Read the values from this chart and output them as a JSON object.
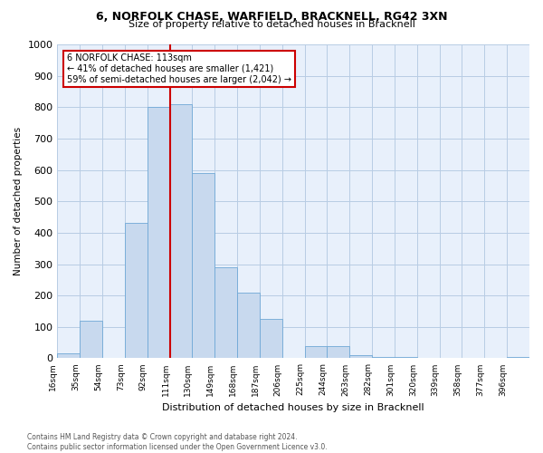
{
  "title": "6, NORFOLK CHASE, WARFIELD, BRACKNELL, RG42 3XN",
  "subtitle": "Size of property relative to detached houses in Bracknell",
  "xlabel": "Distribution of detached houses by size in Bracknell",
  "ylabel": "Number of detached properties",
  "bar_color": "#c8d9ee",
  "bar_edge_color": "#6fa8d6",
  "grid_color": "#b8cce4",
  "background_color": "#e8f0fb",
  "tick_labels": [
    "16sqm",
    "35sqm",
    "54sqm",
    "73sqm",
    "92sqm",
    "111sqm",
    "130sqm",
    "149sqm",
    "168sqm",
    "187sqm",
    "206sqm",
    "225sqm",
    "244sqm",
    "263sqm",
    "282sqm",
    "301sqm",
    "320sqm",
    "339sqm",
    "358sqm",
    "377sqm",
    "396sqm"
  ],
  "bar_heights": [
    15,
    120,
    0,
    430,
    800,
    810,
    590,
    290,
    210,
    125,
    0,
    40,
    40,
    10,
    5,
    5,
    0,
    0,
    0,
    0,
    5
  ],
  "ylim": [
    0,
    1000
  ],
  "yticks": [
    0,
    100,
    200,
    300,
    400,
    500,
    600,
    700,
    800,
    900,
    1000
  ],
  "vline_color": "#cc0000",
  "annotation_title": "6 NORFOLK CHASE: 113sqm",
  "annotation_line1": "← 41% of detached houses are smaller (1,421)",
  "annotation_line2": "59% of semi-detached houses are larger (2,042) →",
  "annotation_box_color": "#ffffff",
  "annotation_box_edge": "#cc0000",
  "footer_line1": "Contains HM Land Registry data © Crown copyright and database right 2024.",
  "footer_line2": "Contains public sector information licensed under the Open Government Licence v3.0."
}
